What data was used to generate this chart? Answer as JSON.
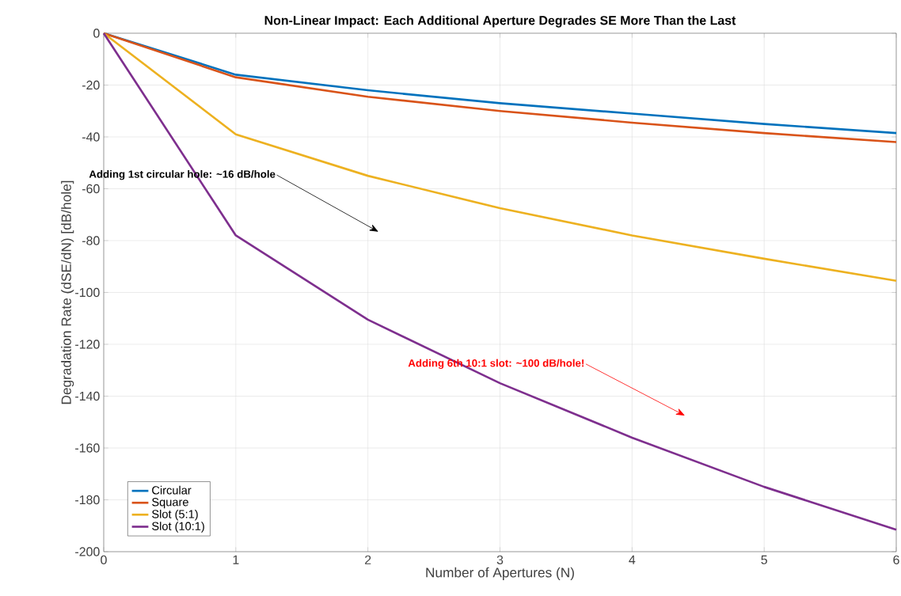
{
  "chart_data": {
    "type": "line",
    "title": "Non-Linear Impact: Each Additional Aperture Degrades SE More Than the Last",
    "xlabel": "Number of Apertures (N)",
    "ylabel": "Degradation Rate (dSE/dN) [dB/hole]",
    "x": [
      0,
      1,
      2,
      3,
      4,
      5,
      6
    ],
    "series": [
      {
        "name": "Circular",
        "color": "#0072bd",
        "values": [
          0,
          -16,
          -22,
          -27,
          -31,
          -35,
          -38.5
        ]
      },
      {
        "name": "Square",
        "color": "#d95319",
        "values": [
          0,
          -17,
          -24.5,
          -30,
          -34.5,
          -38.5,
          -42
        ]
      },
      {
        "name": "Slot (5:1)",
        "color": "#edb120",
        "values": [
          0,
          -39,
          -55,
          -67.5,
          -78,
          -87,
          -95.5
        ]
      },
      {
        "name": "Slot (10:1)",
        "color": "#7e2f8e",
        "values": [
          0,
          -78,
          -110.5,
          -135,
          -156,
          -175,
          -191.5
        ]
      }
    ],
    "xlim": [
      0,
      6
    ],
    "ylim": [
      -200,
      0
    ],
    "xticks": [
      0,
      1,
      2,
      3,
      4,
      5,
      6
    ],
    "yticks": [
      -200,
      -180,
      -160,
      -140,
      -120,
      -100,
      -80,
      -60,
      -40,
      -20,
      0
    ],
    "annotations": [
      "Adding 1st circular hole: ~16 dB/hole",
      "Adding 6th 10:1 slot: ~100 dB/hole!"
    ],
    "grid": true,
    "legend": "bottom left",
    "marker": "none",
    "line_style": "solid"
  }
}
